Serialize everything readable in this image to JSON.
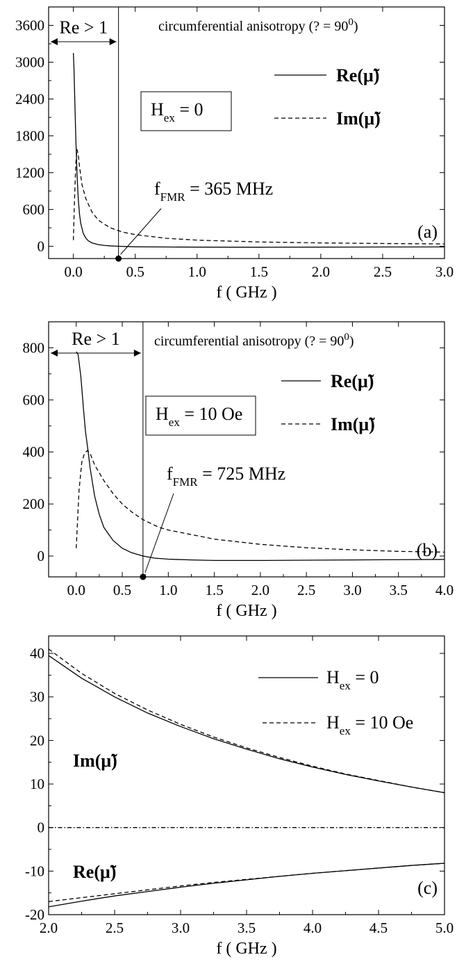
{
  "chart_data": [
    {
      "type": "line",
      "panel_label": "(a)",
      "xlabel": "f ( GHz )",
      "ylabel": "",
      "xlim": [
        -0.2,
        3.0
      ],
      "ylim": [
        -200,
        3900
      ],
      "xticks": [
        "0.0",
        "0.5",
        "1.0",
        "1.5",
        "2.0",
        "2.5",
        "3.0"
      ],
      "xtick_values": [
        0.0,
        0.5,
        1.0,
        1.5,
        2.0,
        2.5,
        3.0
      ],
      "yticks": [
        "0",
        "600",
        "1200",
        "1800",
        "2400",
        "3000",
        "3600"
      ],
      "ytick_values": [
        0,
        600,
        1200,
        1800,
        2400,
        3000,
        3600
      ],
      "annotation_top": "circumferential anisotropy (? = 90",
      "annotation_top_sup": "0",
      "annotation_top_end": ")",
      "re_region_label": "Re > 1",
      "field_label_main": "H",
      "field_label_sub": "ex",
      "field_label_value": " = 0",
      "fmr_label_main": "f",
      "fmr_label_sub": "FMR",
      "fmr_label_value": " = 365 MHz",
      "fmr_value_ghz": 0.365,
      "series": [
        {
          "name": "Re(μ̃)",
          "style": "solid",
          "x": [
            0.0,
            0.005,
            0.01,
            0.02,
            0.03,
            0.04,
            0.05,
            0.06,
            0.08,
            0.1,
            0.12,
            0.15,
            0.2,
            0.25,
            0.3,
            0.365,
            0.5,
            0.75,
            1.0,
            1.5,
            2.0,
            2.5,
            3.0
          ],
          "y": [
            3150,
            2900,
            2500,
            1750,
            1150,
            760,
            520,
            370,
            210,
            135,
            90,
            55,
            28,
            14,
            6,
            0,
            -8,
            -12,
            -14,
            -15,
            -14,
            -12,
            -10
          ]
        },
        {
          "name": "Im(μ̃)",
          "style": "dashed",
          "x": [
            0.0,
            0.01,
            0.02,
            0.03,
            0.04,
            0.05,
            0.07,
            0.1,
            0.15,
            0.2,
            0.25,
            0.3,
            0.4,
            0.5,
            0.75,
            1.0,
            1.5,
            2.0,
            2.5,
            3.0
          ],
          "y": [
            100,
            800,
            1350,
            1580,
            1480,
            1300,
            1000,
            780,
            560,
            430,
            360,
            300,
            230,
            190,
            130,
            100,
            70,
            55,
            45,
            38
          ]
        }
      ]
    },
    {
      "type": "line",
      "panel_label": "(b)",
      "xlabel": "f ( GHz )",
      "ylabel": "",
      "xlim": [
        -0.3,
        4.0
      ],
      "ylim": [
        -80,
        900
      ],
      "xticks": [
        "0.0",
        "0.5",
        "1.0",
        "1.5",
        "2.0",
        "2.5",
        "3.0",
        "3.5",
        "4.0"
      ],
      "xtick_values": [
        0.0,
        0.5,
        1.0,
        1.5,
        2.0,
        2.5,
        3.0,
        3.5,
        4.0
      ],
      "yticks": [
        "0",
        "200",
        "400",
        "600",
        "800"
      ],
      "ytick_values": [
        0,
        200,
        400,
        600,
        800
      ],
      "annotation_top": "circumferential anisotropy (? = 90",
      "annotation_top_sup": "0",
      "annotation_top_end": ")",
      "re_region_label": "Re > 1",
      "field_label_main": "H",
      "field_label_sub": "ex",
      "field_label_value": " = 10 Oe",
      "fmr_label_main": "f",
      "fmr_label_sub": "FMR",
      "fmr_label_value": " = 725 MHz",
      "fmr_value_ghz": 0.725,
      "series": [
        {
          "name": "Re(μ̃)",
          "style": "solid",
          "x": [
            0.0,
            0.02,
            0.05,
            0.08,
            0.1,
            0.13,
            0.15,
            0.2,
            0.25,
            0.3,
            0.4,
            0.5,
            0.6,
            0.725,
            0.85,
            1.0,
            1.25,
            1.5,
            2.0,
            2.5,
            3.0,
            3.5,
            4.0
          ],
          "y": [
            785,
            775,
            690,
            560,
            480,
            400,
            340,
            230,
            160,
            110,
            60,
            30,
            13,
            0,
            -8,
            -12,
            -15,
            -17,
            -17,
            -16,
            -15,
            -14,
            -13
          ]
        },
        {
          "name": "Im(μ̃)",
          "style": "dashed",
          "x": [
            0.0,
            0.03,
            0.06,
            0.09,
            0.12,
            0.15,
            0.2,
            0.3,
            0.4,
            0.5,
            0.6,
            0.725,
            0.9,
            1.0,
            1.5,
            2.0,
            2.5,
            3.0,
            3.5,
            4.0
          ],
          "y": [
            30,
            250,
            360,
            395,
            405,
            395,
            350,
            290,
            240,
            200,
            170,
            140,
            110,
            100,
            65,
            45,
            32,
            24,
            18,
            15
          ]
        }
      ]
    },
    {
      "type": "line",
      "panel_label": "(c)",
      "xlabel": "f ( GHz )",
      "ylabel": "",
      "xlim": [
        2.0,
        5.0
      ],
      "ylim": [
        -20,
        44
      ],
      "xticks": [
        "2.0",
        "2.5",
        "3.0",
        "3.5",
        "4.0",
        "4.5",
        "5.0"
      ],
      "xtick_values": [
        2.0,
        2.5,
        3.0,
        3.5,
        4.0,
        4.5,
        5.0
      ],
      "yticks": [
        "-20",
        "-10",
        "0",
        "10",
        "20",
        "30",
        "40"
      ],
      "ytick_values": [
        -20,
        -10,
        0,
        10,
        20,
        30,
        40
      ],
      "im_curve_label": "Im(μ̃)",
      "re_curve_label": "Re(μ̃)",
      "series": [
        {
          "name": "H_ex = 0",
          "legend_main": "H",
          "legend_sub": "ex",
          "legend_value": " = 0",
          "style": "solid",
          "group": "Im",
          "x": [
            2.0,
            2.25,
            2.5,
            2.75,
            3.0,
            3.25,
            3.5,
            3.75,
            4.0,
            4.25,
            4.5,
            4.75,
            5.0
          ],
          "y": [
            39.5,
            34.3,
            30.0,
            26.3,
            23.2,
            20.4,
            18.0,
            15.8,
            13.9,
            12.2,
            10.7,
            9.3,
            8.0
          ]
        },
        {
          "name": "H_ex = 10 Oe",
          "legend_main": "H",
          "legend_sub": "ex",
          "legend_value": " = 10 Oe",
          "style": "dashed",
          "group": "Im",
          "x": [
            2.0,
            2.25,
            2.5,
            2.75,
            3.0,
            3.25,
            3.5,
            3.75,
            4.0,
            4.25,
            4.5,
            4.75,
            5.0
          ],
          "y": [
            41.0,
            35.4,
            30.8,
            27.0,
            23.7,
            20.8,
            18.3,
            16.1,
            14.1,
            12.3,
            10.8,
            9.3,
            8.0
          ]
        },
        {
          "name": "",
          "style": "solid",
          "group": "Re",
          "x": [
            2.0,
            2.25,
            2.5,
            2.75,
            3.0,
            3.25,
            3.5,
            3.75,
            4.0,
            4.25,
            4.5,
            4.75,
            5.0
          ],
          "y": [
            -18.2,
            -16.9,
            -15.7,
            -14.7,
            -13.7,
            -12.8,
            -12.0,
            -11.2,
            -10.5,
            -9.9,
            -9.3,
            -8.7,
            -8.2
          ]
        },
        {
          "name": "",
          "style": "dashed",
          "group": "Re",
          "x": [
            2.0,
            2.25,
            2.5,
            2.75,
            3.0,
            3.25,
            3.5,
            3.75,
            4.0,
            4.25,
            4.5,
            4.75,
            5.0
          ],
          "y": [
            -17.0,
            -16.1,
            -15.2,
            -14.3,
            -13.4,
            -12.6,
            -11.9,
            -11.2,
            -10.5,
            -9.9,
            -9.3,
            -8.7,
            -8.2
          ]
        },
        {
          "name": "",
          "style": "dashdot",
          "group": "zero",
          "x": [
            2.0,
            5.0
          ],
          "y": [
            0,
            0
          ]
        }
      ]
    }
  ]
}
